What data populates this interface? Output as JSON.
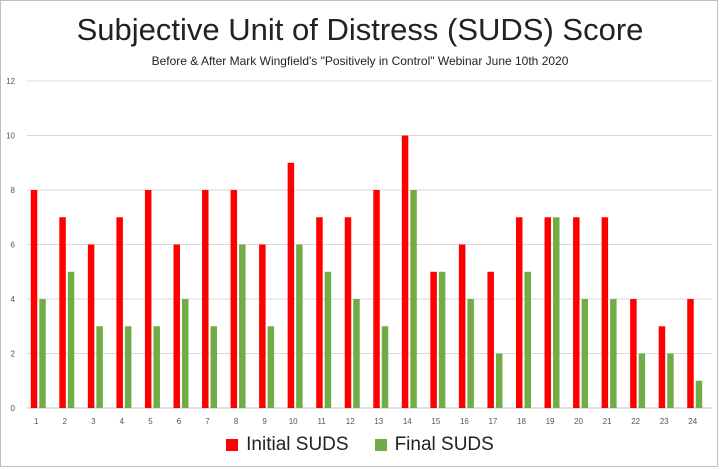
{
  "chart_data": {
    "type": "bar",
    "title": "Subjective Unit of Distress (SUDS) Score",
    "subtitle": "Before & After Mark Wingfield's  \"Positively in Control\" Webinar June 10th 2020",
    "xlabel": "",
    "ylabel": "",
    "ylim": [
      0,
      12
    ],
    "yticks": [
      0,
      2,
      4,
      6,
      8,
      10,
      12
    ],
    "grid": true,
    "legend": "bottom",
    "categories": [
      "1",
      "2",
      "3",
      "4",
      "5",
      "6",
      "7",
      "8",
      "9",
      "10",
      "11",
      "12",
      "13",
      "14",
      "15",
      "16",
      "17",
      "18",
      "19",
      "20",
      "21",
      "22",
      "23",
      "24"
    ],
    "series": [
      {
        "name": "Initial SUDS",
        "color": "#ff0000",
        "values": [
          8,
          7,
          6,
          7,
          8,
          6,
          8,
          8,
          6,
          9,
          7,
          7,
          8,
          10,
          5,
          6,
          5,
          7,
          7,
          7,
          7,
          4,
          3,
          4
        ]
      },
      {
        "name": "Final SUDS",
        "color": "#70ad47",
        "values": [
          4,
          5,
          3,
          3,
          3,
          4,
          3,
          6,
          3,
          6,
          5,
          4,
          3,
          8,
          5,
          4,
          2,
          5,
          7,
          4,
          4,
          2,
          2,
          1
        ]
      }
    ]
  }
}
